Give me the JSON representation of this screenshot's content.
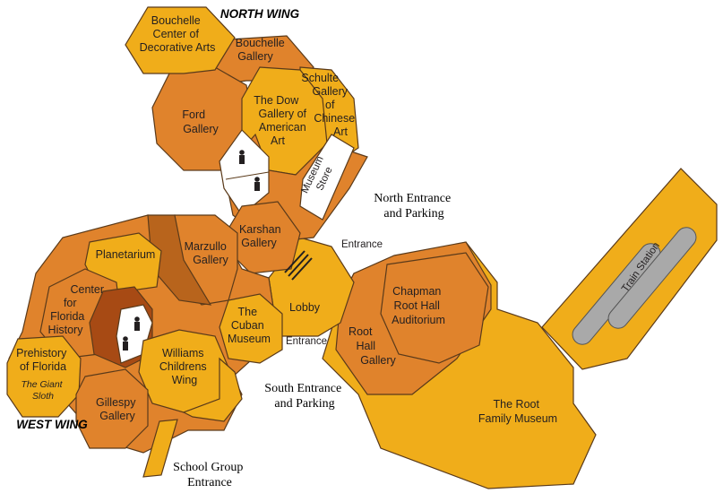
{
  "wings": {
    "north": "NORTH WING",
    "west": "WEST WING"
  },
  "rooms": {
    "bouchelle_center": [
      "Bouchelle",
      "Center of",
      "Decorative Arts"
    ],
    "bouchelle_gallery": [
      "Bouchelle",
      "Gallery"
    ],
    "schulte": [
      "Schulte",
      "Gallery",
      "of",
      "Chinese",
      "Art"
    ],
    "ford": [
      "Ford",
      "Gallery"
    ],
    "dow": [
      "The Dow",
      "Gallery of",
      "American",
      "Art"
    ],
    "museum_store": [
      "Museum",
      "Store"
    ],
    "karshan": [
      "Karshan",
      "Gallery"
    ],
    "marzullo": [
      "Marzullo",
      "Gallery"
    ],
    "planetarium": [
      "Planetarium"
    ],
    "center_florida": [
      "Center",
      "for",
      "Florida",
      "History"
    ],
    "prehistory": [
      "Prehistory",
      "of Florida"
    ],
    "giant_sloth": [
      "The Giant",
      "Sloth"
    ],
    "williams": [
      "Williams",
      "Childrens",
      "Wing"
    ],
    "gillespy": [
      "Gillespy",
      "Gallery"
    ],
    "cuban": [
      "The",
      "Cuban",
      "Museum"
    ],
    "lobby": [
      "Lobby"
    ],
    "root_hall": [
      "Root",
      "Hall",
      "Gallery"
    ],
    "chapman": [
      "Chapman",
      "Root Hall",
      "Auditorium"
    ],
    "root_family": [
      "The Root",
      "Family Museum"
    ],
    "train_station": [
      "Train Station"
    ]
  },
  "entrances": {
    "north": [
      "North Entrance",
      "and Parking"
    ],
    "south": [
      "South Entrance",
      "and Parking"
    ],
    "school": [
      "School Group",
      "Entrance"
    ],
    "entrance_top": "Entrance",
    "entrance_bottom": "Entrance"
  },
  "icons": {
    "restroom": "restroom-icon"
  },
  "colors": {
    "yellow": "#f0ad1a",
    "orange": "#e0832c",
    "dark_brown": "#a74a14",
    "medium_brown": "#b8641c",
    "track": "#a9a9a9"
  }
}
